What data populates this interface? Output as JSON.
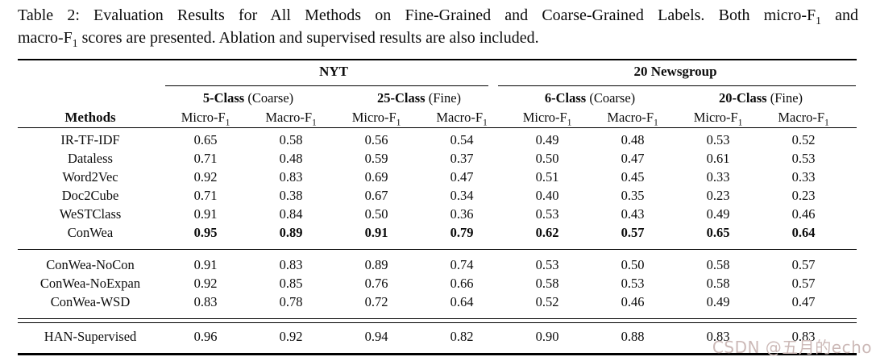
{
  "caption": {
    "l1a": "Table 2: Evaluation Results for All Methods on Fine-Grained and Coarse-Grained Labels.  Both micro-F",
    "sub1": "1",
    "l1b": " and",
    "l2a": "macro-F",
    "l2b": " scores are presented. Ablation and supervised results are also included."
  },
  "table": {
    "header": {
      "methods": "Methods",
      "micro": "Micro-F",
      "macro": "Macro-F",
      "sub": "1"
    },
    "groups": [
      {
        "label": "NYT",
        "classes": [
          {
            "bold": "5-Class",
            "rest": " (Coarse)"
          },
          {
            "bold": "25-Class",
            "rest": " (Fine)"
          }
        ]
      },
      {
        "label": "20 Newsgroup",
        "classes": [
          {
            "bold": "6-Class",
            "rest": " (Coarse)"
          },
          {
            "bold": "20-Class",
            "rest": " (Fine)"
          }
        ]
      }
    ],
    "sections": [
      {
        "name": "main-results",
        "rows": [
          {
            "method": "IR-TF-IDF",
            "bold": false,
            "values": [
              "0.65",
              "0.58",
              "0.56",
              "0.54",
              "0.49",
              "0.48",
              "0.53",
              "0.52"
            ]
          },
          {
            "method": "Dataless",
            "bold": false,
            "values": [
              "0.71",
              "0.48",
              "0.59",
              "0.37",
              "0.50",
              "0.47",
              "0.61",
              "0.53"
            ]
          },
          {
            "method": "Word2Vec",
            "bold": false,
            "values": [
              "0.92",
              "0.83",
              "0.69",
              "0.47",
              "0.51",
              "0.45",
              "0.33",
              "0.33"
            ]
          },
          {
            "method": "Doc2Cube",
            "bold": false,
            "values": [
              "0.71",
              "0.38",
              "0.67",
              "0.34",
              "0.40",
              "0.35",
              "0.23",
              "0.23"
            ]
          },
          {
            "method": "WeSTClass",
            "bold": false,
            "values": [
              "0.91",
              "0.84",
              "0.50",
              "0.36",
              "0.53",
              "0.43",
              "0.49",
              "0.46"
            ]
          },
          {
            "method": "ConWea",
            "bold": true,
            "values": [
              "0.95",
              "0.89",
              "0.91",
              "0.79",
              "0.62",
              "0.57",
              "0.65",
              "0.64"
            ]
          }
        ]
      },
      {
        "name": "ablation",
        "rows": [
          {
            "method": "ConWea-NoCon",
            "bold": false,
            "values": [
              "0.91",
              "0.83",
              "0.89",
              "0.74",
              "0.53",
              "0.50",
              "0.58",
              "0.57"
            ]
          },
          {
            "method": "ConWea-NoExpan",
            "bold": false,
            "values": [
              "0.92",
              "0.85",
              "0.76",
              "0.66",
              "0.58",
              "0.53",
              "0.58",
              "0.57"
            ]
          },
          {
            "method": "ConWea-WSD",
            "bold": false,
            "values": [
              "0.83",
              "0.78",
              "0.72",
              "0.64",
              "0.52",
              "0.46",
              "0.49",
              "0.47"
            ]
          }
        ]
      },
      {
        "name": "supervised",
        "rows": [
          {
            "method": "HAN-Supervised",
            "bold": false,
            "values": [
              "0.96",
              "0.92",
              "0.94",
              "0.82",
              "0.90",
              "0.88",
              "0.83",
              "0.83"
            ]
          }
        ]
      }
    ]
  },
  "watermark": {
    "text": "CSDN @五月的echo",
    "color": "#ccb9b7"
  }
}
